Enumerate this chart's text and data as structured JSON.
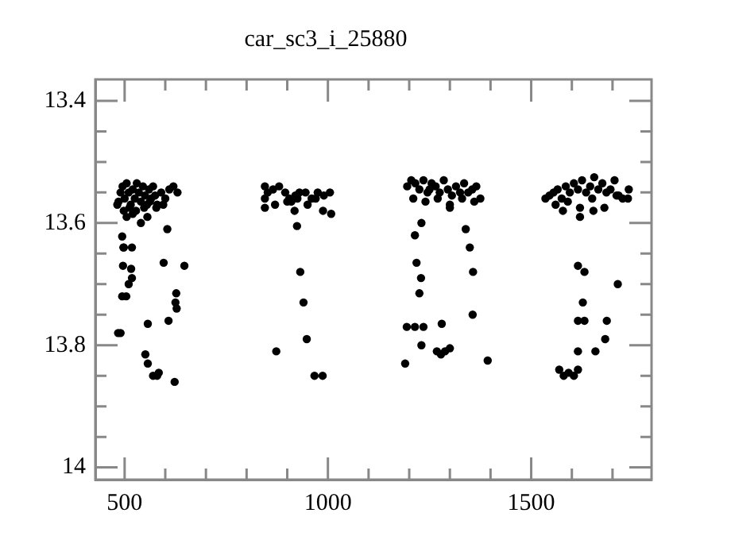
{
  "chart_data": {
    "type": "scatter",
    "title": "car_sc3_i_25880",
    "marker": "circle",
    "grid": false,
    "legend": false,
    "xlim": [
      428,
      1796
    ],
    "ylim": [
      14.02,
      13.365
    ],
    "xticks": [
      {
        "value": 500,
        "label": "500"
      },
      {
        "value": 600,
        "label": null
      },
      {
        "value": 700,
        "label": null
      },
      {
        "value": 800,
        "label": null
      },
      {
        "value": 900,
        "label": null
      },
      {
        "value": 1000,
        "label": "1000"
      },
      {
        "value": 1100,
        "label": null
      },
      {
        "value": 1200,
        "label": null
      },
      {
        "value": 1300,
        "label": null
      },
      {
        "value": 1400,
        "label": null
      },
      {
        "value": 1500,
        "label": "1500"
      },
      {
        "value": 1600,
        "label": null
      },
      {
        "value": 1700,
        "label": null
      }
    ],
    "yticks": [
      {
        "value": 13.4,
        "label": "13.4"
      },
      {
        "value": 13.45,
        "label": null
      },
      {
        "value": 13.5,
        "label": null
      },
      {
        "value": 13.55,
        "label": null
      },
      {
        "value": 13.6,
        "label": "13.6"
      },
      {
        "value": 13.65,
        "label": null
      },
      {
        "value": 13.7,
        "label": null
      },
      {
        "value": 13.75,
        "label": null
      },
      {
        "value": 13.8,
        "label": "13.8"
      },
      {
        "value": 13.85,
        "label": null
      },
      {
        "value": 13.9,
        "label": null
      },
      {
        "value": 13.95,
        "label": null
      },
      {
        "value": 14,
        "label": "14"
      }
    ],
    "series": [
      {
        "color": "#000000",
        "x": [
          482,
          490,
          495,
          500,
          505,
          510,
          515,
          520,
          525,
          530,
          535,
          540,
          545,
          550,
          555,
          560,
          565,
          570,
          575,
          580,
          590,
          600,
          610,
          620,
          630,
          485,
          498,
          512,
          528,
          548,
          562,
          578,
          595,
          505,
          520,
          540,
          556,
          494,
          498,
          497,
          518,
          496,
          518,
          516,
          510,
          504,
          494,
          484,
          490,
          557,
          551,
          557,
          570,
          580,
          584,
          623,
          608,
          627,
          625,
          628,
          605,
          596,
          647,
          845,
          852,
          865,
          880,
          895,
          905,
          920,
          930,
          945,
          960,
          975,
          990,
          1005,
          870,
          900,
          925,
          950,
          970,
          988,
          1008,
          845,
          845,
          910,
          918,
          924,
          932,
          940,
          948,
          873,
          967,
          987,
          1195,
          1205,
          1215,
          1225,
          1235,
          1245,
          1255,
          1265,
          1275,
          1285,
          1295,
          1305,
          1315,
          1325,
          1335,
          1345,
          1355,
          1365,
          1375,
          1210,
          1240,
          1270,
          1300,
          1330,
          1360,
          1250,
          1230,
          1300,
          1214,
          1339,
          1349,
          1218,
          1357,
          1229,
          1225,
          1194,
          1214,
          1235,
          1356,
          1280,
          1230,
          1268,
          1278,
          1288,
          1300,
          1190,
          1393,
          1535,
          1545,
          1555,
          1565,
          1575,
          1585,
          1595,
          1605,
          1615,
          1625,
          1635,
          1645,
          1655,
          1665,
          1675,
          1685,
          1695,
          1705,
          1715,
          1725,
          1740,
          1560,
          1590,
          1620,
          1650,
          1680,
          1710,
          1738,
          1578,
          1620,
          1653,
          1615,
          1631,
          1713,
          1627,
          1615,
          1631,
          1686,
          1615,
          1658,
          1682,
          1569,
          1580,
          1592,
          1605,
          1615
        ],
        "values": [
          13.57,
          13.55,
          13.54,
          13.56,
          13.535,
          13.55,
          13.57,
          13.545,
          13.56,
          13.535,
          13.55,
          13.565,
          13.54,
          13.555,
          13.57,
          13.545,
          13.56,
          13.54,
          13.555,
          13.57,
          13.55,
          13.56,
          13.545,
          13.54,
          13.55,
          13.565,
          13.58,
          13.575,
          13.58,
          13.575,
          13.565,
          13.575,
          13.57,
          13.59,
          13.585,
          13.6,
          13.59,
          13.622,
          13.64,
          13.64,
          13.64,
          13.67,
          13.69,
          13.675,
          13.7,
          13.72,
          13.72,
          13.78,
          13.78,
          13.765,
          13.815,
          13.83,
          13.85,
          13.85,
          13.845,
          13.86,
          13.76,
          13.715,
          13.73,
          13.74,
          13.61,
          13.665,
          13.67,
          13.54,
          13.55,
          13.545,
          13.54,
          13.55,
          13.56,
          13.555,
          13.55,
          13.55,
          13.56,
          13.55,
          13.555,
          13.55,
          13.57,
          13.565,
          13.56,
          13.57,
          13.56,
          13.58,
          13.585,
          13.56,
          13.575,
          13.565,
          13.58,
          13.605,
          13.68,
          13.73,
          13.79,
          13.81,
          13.85,
          13.85,
          13.54,
          13.53,
          13.535,
          13.545,
          13.53,
          13.55,
          13.535,
          13.54,
          13.55,
          13.53,
          13.545,
          13.555,
          13.54,
          13.55,
          13.535,
          13.55,
          13.545,
          13.54,
          13.56,
          13.56,
          13.565,
          13.56,
          13.57,
          13.56,
          13.565,
          13.545,
          13.6,
          13.575,
          13.62,
          13.61,
          13.64,
          13.665,
          13.68,
          13.69,
          13.715,
          13.77,
          13.77,
          13.77,
          13.75,
          13.765,
          13.8,
          13.81,
          13.815,
          13.81,
          13.805,
          13.83,
          13.825,
          13.56,
          13.555,
          13.55,
          13.545,
          13.56,
          13.54,
          13.55,
          13.535,
          13.545,
          13.53,
          13.55,
          13.54,
          13.525,
          13.545,
          13.535,
          13.55,
          13.545,
          13.53,
          13.555,
          13.56,
          13.545,
          13.57,
          13.565,
          13.575,
          13.56,
          13.575,
          13.555,
          13.56,
          13.58,
          13.59,
          13.58,
          13.67,
          13.68,
          13.7,
          13.73,
          13.76,
          13.76,
          13.76,
          13.81,
          13.81,
          13.79,
          13.84,
          13.85,
          13.845,
          13.85,
          13.84
        ]
      }
    ]
  }
}
